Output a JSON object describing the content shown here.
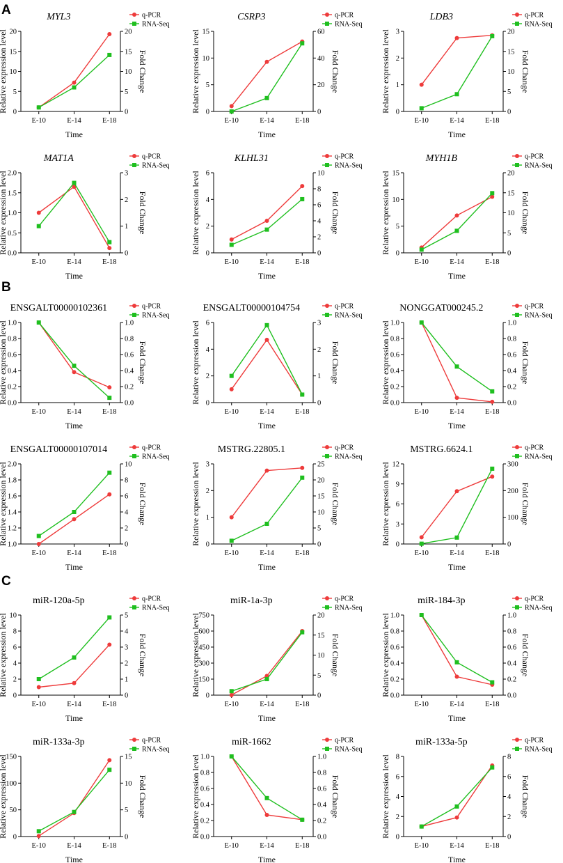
{
  "figure_title": "q-PCR and RNA-Seq expression validation",
  "colors": {
    "qpcr": "#ee3b3b",
    "rnaseq": "#1fbf1f"
  },
  "panel_letters": [
    "A",
    "B",
    "C"
  ],
  "chart_data": [
    {
      "id": "MYL3",
      "panel": "A",
      "type": "line",
      "title": "MYL3",
      "title_italic": true,
      "categories": [
        "E-10",
        "E-14",
        "E-18"
      ],
      "xlabel": "Time",
      "ylabel": "Relative expression level",
      "y2label": "Fold Change",
      "ylim": [
        0,
        20
      ],
      "yticks": [
        0,
        5,
        10,
        15,
        20
      ],
      "y2lim": [
        0,
        20
      ],
      "y2ticks": [
        0,
        5,
        10,
        15,
        20
      ],
      "series": [
        {
          "name": "q-PCR",
          "axis": "left",
          "marker": "circle",
          "values": [
            1,
            7.2,
            19.3
          ]
        },
        {
          "name": "RNA-Seq",
          "axis": "right",
          "marker": "square",
          "values": [
            1,
            6.0,
            14.1
          ]
        }
      ]
    },
    {
      "id": "CSRP3",
      "panel": "A",
      "type": "line",
      "title": "CSRP3",
      "title_italic": true,
      "categories": [
        "E-10",
        "E-14",
        "E-18"
      ],
      "xlabel": "Time",
      "ylabel": "Relative expression level",
      "y2label": "Fold Change",
      "ylim": [
        0,
        15
      ],
      "yticks": [
        0,
        5,
        10,
        15
      ],
      "y2lim": [
        0,
        60
      ],
      "y2ticks": [
        0,
        20,
        40,
        60
      ],
      "series": [
        {
          "name": "q-PCR",
          "axis": "left",
          "marker": "circle",
          "values": [
            1,
            9.3,
            13.1
          ]
        },
        {
          "name": "RNA-Seq",
          "axis": "right",
          "marker": "square",
          "values": [
            0,
            10,
            51
          ]
        }
      ]
    },
    {
      "id": "LDB3",
      "panel": "A",
      "type": "line",
      "title": "LDB3",
      "title_italic": true,
      "categories": [
        "E-10",
        "E-14",
        "E-18"
      ],
      "xlabel": "Time",
      "ylabel": "Relative expression level",
      "y2label": "Fold Change",
      "ylim": [
        0,
        3
      ],
      "yticks": [
        0,
        1,
        2,
        3
      ],
      "y2lim": [
        0,
        20
      ],
      "y2ticks": [
        0,
        5,
        10,
        15,
        20
      ],
      "series": [
        {
          "name": "q-PCR",
          "axis": "left",
          "marker": "circle",
          "values": [
            1,
            2.75,
            2.85
          ]
        },
        {
          "name": "RNA-Seq",
          "axis": "right",
          "marker": "square",
          "values": [
            0.8,
            4.3,
            18.8
          ]
        }
      ]
    },
    {
      "id": "MAT1A",
      "panel": "A",
      "type": "line",
      "title": "MAT1A",
      "title_italic": true,
      "categories": [
        "E-10",
        "E-14",
        "E-18"
      ],
      "xlabel": "Time",
      "ylabel": "Relative expression level",
      "y2label": "Fold Change",
      "ylim": [
        0,
        2.0
      ],
      "yticks": [
        0,
        0.5,
        1.0,
        1.5,
        2.0
      ],
      "y2lim": [
        0,
        3
      ],
      "y2ticks": [
        0,
        1,
        2,
        3
      ],
      "series": [
        {
          "name": "q-PCR",
          "axis": "left",
          "marker": "circle",
          "values": [
            1.0,
            1.65,
            0.12
          ]
        },
        {
          "name": "RNA-Seq",
          "axis": "right",
          "marker": "square",
          "values": [
            1.0,
            2.62,
            0.4
          ]
        }
      ]
    },
    {
      "id": "KLHL31",
      "panel": "A",
      "type": "line",
      "title": "KLHL31",
      "title_italic": true,
      "categories": [
        "E-10",
        "E-14",
        "E-18"
      ],
      "xlabel": "Time",
      "ylabel": "Relative expression level",
      "y2label": "Fold Change",
      "ylim": [
        0,
        6
      ],
      "yticks": [
        0,
        2,
        4,
        6
      ],
      "y2lim": [
        0,
        10
      ],
      "y2ticks": [
        0,
        2,
        4,
        6,
        8,
        10
      ],
      "series": [
        {
          "name": "q-PCR",
          "axis": "left",
          "marker": "circle",
          "values": [
            1,
            2.4,
            5.0
          ]
        },
        {
          "name": "RNA-Seq",
          "axis": "right",
          "marker": "square",
          "values": [
            1.0,
            2.9,
            6.7
          ]
        }
      ]
    },
    {
      "id": "MYH1B",
      "panel": "A",
      "type": "line",
      "title": "MYH1B",
      "title_italic": true,
      "categories": [
        "E-10",
        "E-14",
        "E-18"
      ],
      "xlabel": "Time",
      "ylabel": "Relative expression level",
      "y2label": "Fold Change",
      "ylim": [
        0,
        15
      ],
      "yticks": [
        0,
        5,
        10,
        15
      ],
      "y2lim": [
        0,
        20
      ],
      "y2ticks": [
        0,
        5,
        10,
        15,
        20
      ],
      "series": [
        {
          "name": "q-PCR",
          "axis": "left",
          "marker": "circle",
          "values": [
            1,
            7.0,
            10.5
          ]
        },
        {
          "name": "RNA-Seq",
          "axis": "right",
          "marker": "square",
          "values": [
            0.8,
            5.5,
            14.9
          ]
        }
      ]
    },
    {
      "id": "ENSGALT00000102361",
      "panel": "B",
      "type": "line",
      "title": "ENSGALT00000102361",
      "title_italic": false,
      "categories": [
        "E-10",
        "E-14",
        "E-18"
      ],
      "xlabel": "Time",
      "ylabel": "Relative expression level",
      "y2label": "Fold Change",
      "ylim": [
        0,
        1.0
      ],
      "yticks": [
        0.0,
        0.2,
        0.4,
        0.6,
        0.8,
        1.0
      ],
      "y2lim": [
        0,
        1.0
      ],
      "y2ticks": [
        0.0,
        0.2,
        0.4,
        0.6,
        0.8,
        1.0
      ],
      "series": [
        {
          "name": "q-PCR",
          "axis": "left",
          "marker": "circle",
          "values": [
            1.0,
            0.38,
            0.19
          ]
        },
        {
          "name": "RNA-Seq",
          "axis": "right",
          "marker": "square",
          "values": [
            1.0,
            0.46,
            0.06
          ]
        }
      ]
    },
    {
      "id": "ENSGALT00000104754",
      "panel": "B",
      "type": "line",
      "title": "ENSGALT00000104754",
      "title_italic": false,
      "categories": [
        "E-10",
        "E-14",
        "E-18"
      ],
      "xlabel": "Time",
      "ylabel": "Relative expression level",
      "y2label": "Fold Change",
      "ylim": [
        0,
        6
      ],
      "yticks": [
        0,
        2,
        4,
        6
      ],
      "y2lim": [
        0,
        3
      ],
      "y2ticks": [
        0,
        1,
        2,
        3
      ],
      "series": [
        {
          "name": "q-PCR",
          "axis": "left",
          "marker": "circle",
          "values": [
            1.0,
            4.7,
            0.6
          ]
        },
        {
          "name": "RNA-Seq",
          "axis": "right",
          "marker": "square",
          "values": [
            1.0,
            2.9,
            0.3
          ]
        }
      ]
    },
    {
      "id": "NONGGAT000245.2",
      "panel": "B",
      "type": "line",
      "title": "NONGGAT000245.2",
      "title_italic": false,
      "categories": [
        "E-10",
        "E-14",
        "E-18"
      ],
      "xlabel": "Time",
      "ylabel": "Relative expression level",
      "y2label": "Fold Change",
      "ylim": [
        0,
        1.0
      ],
      "yticks": [
        0.0,
        0.2,
        0.4,
        0.6,
        0.8,
        1.0
      ],
      "y2lim": [
        0,
        1.0
      ],
      "y2ticks": [
        0.0,
        0.2,
        0.4,
        0.6,
        0.8,
        1.0
      ],
      "series": [
        {
          "name": "q-PCR",
          "axis": "left",
          "marker": "circle",
          "values": [
            1.0,
            0.06,
            0.01
          ]
        },
        {
          "name": "RNA-Seq",
          "axis": "right",
          "marker": "square",
          "values": [
            1.0,
            0.45,
            0.14
          ]
        }
      ]
    },
    {
      "id": "ENSGALT00000107014",
      "panel": "B",
      "type": "line",
      "title": "ENSGALT00000107014",
      "title_italic": false,
      "categories": [
        "E-10",
        "E-14",
        "E-18"
      ],
      "xlabel": "Time",
      "ylabel": "Relative expression level",
      "y2label": "Fold Change",
      "ylim": [
        1.0,
        2.0
      ],
      "yticks": [
        1.0,
        1.2,
        1.4,
        1.6,
        1.8,
        2.0
      ],
      "y2lim": [
        0,
        10
      ],
      "y2ticks": [
        0,
        2,
        4,
        6,
        8,
        10
      ],
      "series": [
        {
          "name": "q-PCR",
          "axis": "left",
          "marker": "circle",
          "values": [
            1.0,
            1.31,
            1.62
          ]
        },
        {
          "name": "RNA-Seq",
          "axis": "right",
          "marker": "square",
          "values": [
            1.0,
            4.0,
            8.9
          ]
        }
      ]
    },
    {
      "id": "MSTRG.22805.1",
      "panel": "B",
      "type": "line",
      "title": "MSTRG.22805.1",
      "title_italic": false,
      "categories": [
        "E-10",
        "E-14",
        "E-18"
      ],
      "xlabel": "Time",
      "ylabel": "Relative expression level",
      "y2label": "Fold Change",
      "ylim": [
        0,
        3
      ],
      "yticks": [
        0,
        1,
        2,
        3
      ],
      "y2lim": [
        0,
        25
      ],
      "y2ticks": [
        0,
        5,
        10,
        15,
        20,
        25
      ],
      "series": [
        {
          "name": "q-PCR",
          "axis": "left",
          "marker": "circle",
          "values": [
            1.0,
            2.75,
            2.85
          ]
        },
        {
          "name": "RNA-Seq",
          "axis": "right",
          "marker": "square",
          "values": [
            1.0,
            6.3,
            20.7
          ]
        }
      ]
    },
    {
      "id": "MSTRG.6624.1",
      "panel": "B",
      "type": "line",
      "title": "MSTRG.6624.1",
      "title_italic": false,
      "categories": [
        "E-10",
        "E-14",
        "E-18"
      ],
      "xlabel": "Time",
      "ylabel": "Relative expression level",
      "y2label": "Fold Change",
      "ylim": [
        0,
        12
      ],
      "yticks": [
        0,
        3,
        6,
        9,
        12
      ],
      "y2lim": [
        0,
        300
      ],
      "y2ticks": [
        0,
        100,
        200,
        300
      ],
      "series": [
        {
          "name": "q-PCR",
          "axis": "left",
          "marker": "circle",
          "values": [
            1.0,
            7.9,
            10.1
          ]
        },
        {
          "name": "RNA-Seq",
          "axis": "right",
          "marker": "square",
          "values": [
            1,
            24,
            282
          ]
        }
      ]
    },
    {
      "id": "miR-120a-5p",
      "panel": "C",
      "type": "line",
      "title": "miR-120a-5p",
      "title_italic": false,
      "categories": [
        "E-10",
        "E-14",
        "E-18"
      ],
      "xlabel": "Time",
      "ylabel": "Relative expression level",
      "y2label": "Fold Change",
      "ylim": [
        0,
        10
      ],
      "yticks": [
        0,
        2,
        4,
        6,
        8,
        10
      ],
      "y2lim": [
        0,
        5
      ],
      "y2ticks": [
        0,
        1,
        2,
        3,
        4,
        5
      ],
      "series": [
        {
          "name": "q-PCR",
          "axis": "left",
          "marker": "circle",
          "values": [
            1.0,
            1.5,
            6.3
          ]
        },
        {
          "name": "RNA-Seq",
          "axis": "right",
          "marker": "square",
          "values": [
            1.0,
            2.35,
            4.85
          ]
        }
      ]
    },
    {
      "id": "miR-1a-3p",
      "panel": "C",
      "type": "line",
      "title": "miR-1a-3p",
      "title_italic": false,
      "categories": [
        "E-10",
        "E-14",
        "E-18"
      ],
      "xlabel": "Time",
      "ylabel": "Relative expression level",
      "y2label": "Fold Change",
      "ylim": [
        0,
        750
      ],
      "yticks": [
        0,
        150,
        300,
        450,
        600,
        750
      ],
      "y2lim": [
        0,
        20
      ],
      "y2ticks": [
        0,
        5,
        10,
        15,
        20
      ],
      "series": [
        {
          "name": "q-PCR",
          "axis": "left",
          "marker": "circle",
          "values": [
            1,
            180,
            600
          ]
        },
        {
          "name": "RNA-Seq",
          "axis": "right",
          "marker": "square",
          "values": [
            1.0,
            4.0,
            15.7
          ]
        }
      ]
    },
    {
      "id": "miR-184-3p",
      "panel": "C",
      "type": "line",
      "title": "miR-184-3p",
      "title_italic": false,
      "categories": [
        "E-10",
        "E-14",
        "E-18"
      ],
      "xlabel": "Time",
      "ylabel": "Relative expression level",
      "y2label": "Fold Change",
      "ylim": [
        0,
        1.0
      ],
      "yticks": [
        0.0,
        0.2,
        0.4,
        0.6,
        0.8,
        1.0
      ],
      "y2lim": [
        0,
        1.0
      ],
      "y2ticks": [
        0.0,
        0.2,
        0.4,
        0.6,
        0.8,
        1.0
      ],
      "series": [
        {
          "name": "q-PCR",
          "axis": "left",
          "marker": "circle",
          "values": [
            1.0,
            0.23,
            0.13
          ]
        },
        {
          "name": "RNA-Seq",
          "axis": "right",
          "marker": "square",
          "values": [
            1.0,
            0.41,
            0.16
          ]
        }
      ]
    },
    {
      "id": "miR-133a-3p",
      "panel": "C",
      "type": "line",
      "title": "miR-133a-3p",
      "title_italic": false,
      "categories": [
        "E-10",
        "E-14",
        "E-18"
      ],
      "xlabel": "Time",
      "ylabel": "Relative expression level",
      "y2label": "Fold Change",
      "ylim": [
        0,
        150
      ],
      "yticks": [
        0,
        50,
        100,
        150
      ],
      "y2lim": [
        0,
        15
      ],
      "y2ticks": [
        0,
        5,
        10,
        15
      ],
      "series": [
        {
          "name": "q-PCR",
          "axis": "left",
          "marker": "circle",
          "values": [
            1,
            44,
            143
          ]
        },
        {
          "name": "RNA-Seq",
          "axis": "right",
          "marker": "square",
          "values": [
            1.0,
            4.6,
            12.5
          ]
        }
      ]
    },
    {
      "id": "miR-1662",
      "panel": "C",
      "type": "line",
      "title": "miR-1662",
      "title_italic": false,
      "categories": [
        "E-10",
        "E-14",
        "E-18"
      ],
      "xlabel": "Time",
      "ylabel": "Relative expression level",
      "y2label": "Fold Change",
      "ylim": [
        0,
        1.0
      ],
      "yticks": [
        0.0,
        0.2,
        0.4,
        0.6,
        0.8,
        1.0
      ],
      "y2lim": [
        0,
        1.0
      ],
      "y2ticks": [
        0.0,
        0.2,
        0.4,
        0.6,
        0.8,
        1.0
      ],
      "series": [
        {
          "name": "q-PCR",
          "axis": "left",
          "marker": "circle",
          "values": [
            1.0,
            0.27,
            0.21
          ]
        },
        {
          "name": "RNA-Seq",
          "axis": "right",
          "marker": "square",
          "values": [
            1.0,
            0.48,
            0.21
          ]
        }
      ]
    },
    {
      "id": "miR-133a-5p",
      "panel": "C",
      "type": "line",
      "title": "miR-133a-5p",
      "title_italic": false,
      "categories": [
        "E-10",
        "E-14",
        "E-18"
      ],
      "xlabel": "Time",
      "ylabel": "Relative expression level",
      "y2label": "Fold Change",
      "ylim": [
        0,
        8
      ],
      "yticks": [
        0,
        2,
        4,
        6,
        8
      ],
      "y2lim": [
        0,
        8
      ],
      "y2ticks": [
        0,
        2,
        4,
        6,
        8
      ],
      "series": [
        {
          "name": "q-PCR",
          "axis": "left",
          "marker": "circle",
          "values": [
            1.0,
            1.9,
            7.1
          ]
        },
        {
          "name": "RNA-Seq",
          "axis": "right",
          "marker": "square",
          "values": [
            1.0,
            3.0,
            6.9
          ]
        }
      ]
    }
  ]
}
